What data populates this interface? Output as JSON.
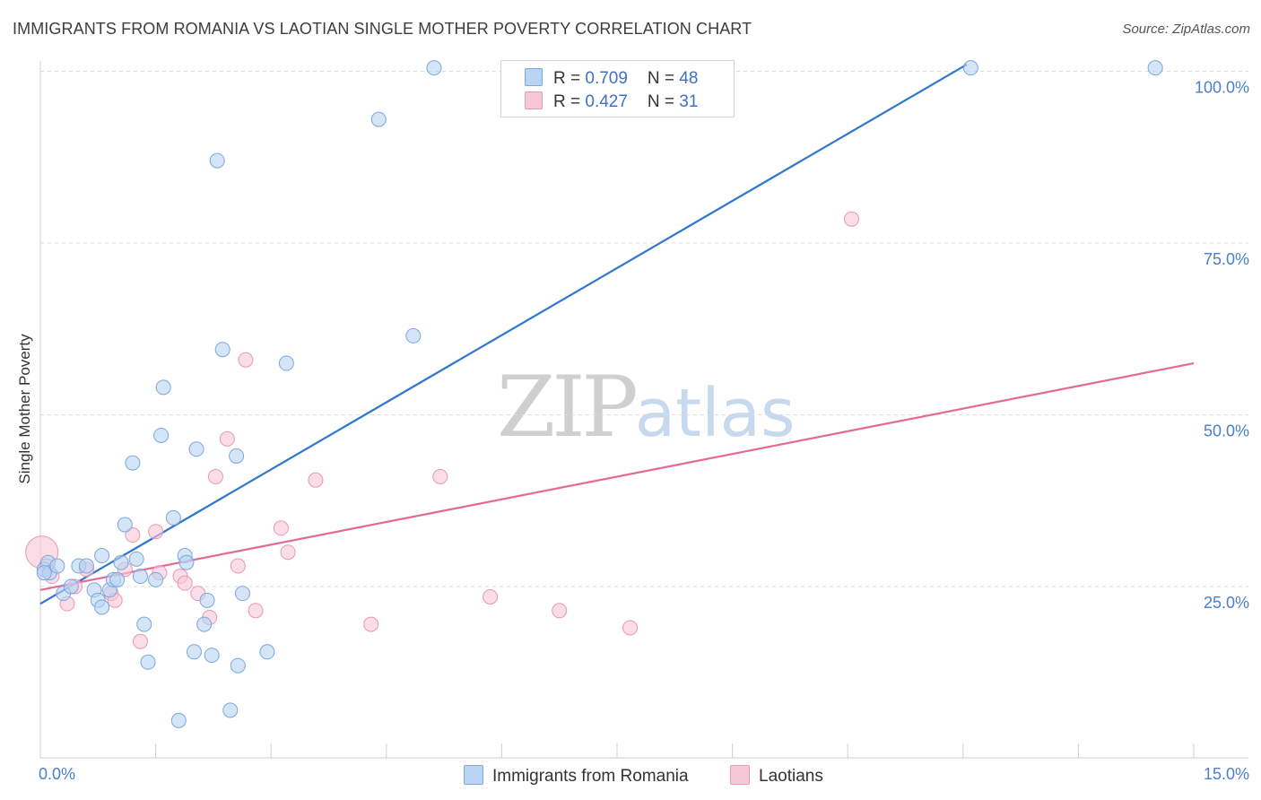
{
  "title": "IMMIGRANTS FROM ROMANIA VS LAOTIAN SINGLE MOTHER POVERTY CORRELATION CHART",
  "source": "Source: ZipAtlas.com",
  "watermark": {
    "zip": "ZIP",
    "atlas": "atlas"
  },
  "legend": {
    "rows": [
      {
        "r_label": "R = ",
        "r_value": "0.709",
        "n_label": "N = ",
        "n_value": "48"
      },
      {
        "r_label": "R = ",
        "r_value": "0.427",
        "n_label": "N = ",
        "n_value": "31"
      }
    ]
  },
  "colors": {
    "blue_fill": "#b9d4f3",
    "blue_stroke": "#7aa7dc",
    "blue_line": "#2f76cf",
    "pink_fill": "#f8c7d7",
    "pink_stroke": "#ea97b3",
    "pink_line": "#e46a96",
    "grid": "#dcdcdc",
    "tick_text": "#4a7fc9"
  },
  "chart_data": {
    "type": "scatter",
    "title": "IMMIGRANTS FROM ROMANIA VS LAOTIAN SINGLE MOTHER POVERTY CORRELATION CHART",
    "xlabel": "",
    "ylabel": "Single Mother Poverty",
    "xlim": [
      0,
      15
    ],
    "ylim": [
      0,
      105
    ],
    "x_tick_labels": [
      {
        "value": 0,
        "label": "0.0%"
      },
      {
        "value": 15,
        "label": "15.0%"
      }
    ],
    "y_tick_labels": [
      {
        "value": 25,
        "label": "25.0%"
      },
      {
        "value": 50,
        "label": "50.0%"
      },
      {
        "value": 75,
        "label": "75.0%"
      },
      {
        "value": 100,
        "label": "100.0%"
      }
    ],
    "series": [
      {
        "name": "Immigrants from Romania",
        "color": "#b9d4f3",
        "trend": {
          "x": [
            0,
            12.05
          ],
          "y": [
            22.5,
            101
          ]
        },
        "points": [
          {
            "x": 0.05,
            "y": 27.5
          },
          {
            "x": 0.1,
            "y": 28.5
          },
          {
            "x": 0.12,
            "y": 27.0
          },
          {
            "x": 0.22,
            "y": 28.0
          },
          {
            "x": 0.3,
            "y": 24.0
          },
          {
            "x": 0.4,
            "y": 25.0
          },
          {
            "x": 0.5,
            "y": 28.0
          },
          {
            "x": 0.6,
            "y": 28.0
          },
          {
            "x": 0.7,
            "y": 24.5
          },
          {
            "x": 0.75,
            "y": 23.0
          },
          {
            "x": 0.8,
            "y": 22.0
          },
          {
            "x": 0.8,
            "y": 29.5
          },
          {
            "x": 0.9,
            "y": 24.5
          },
          {
            "x": 0.95,
            "y": 26.0
          },
          {
            "x": 1.0,
            "y": 26.0
          },
          {
            "x": 1.05,
            "y": 28.5
          },
          {
            "x": 1.1,
            "y": 34.0
          },
          {
            "x": 1.2,
            "y": 43.0
          },
          {
            "x": 1.25,
            "y": 29.0
          },
          {
            "x": 1.3,
            "y": 26.5
          },
          {
            "x": 1.35,
            "y": 19.5
          },
          {
            "x": 1.4,
            "y": 14.0
          },
          {
            "x": 1.5,
            "y": 26.0
          },
          {
            "x": 1.57,
            "y": 47.0
          },
          {
            "x": 1.6,
            "y": 54.0
          },
          {
            "x": 1.73,
            "y": 35.0
          },
          {
            "x": 1.8,
            "y": 5.5
          },
          {
            "x": 1.88,
            "y": 29.5
          },
          {
            "x": 1.9,
            "y": 28.5
          },
          {
            "x": 2.0,
            "y": 15.5
          },
          {
            "x": 2.03,
            "y": 45.0
          },
          {
            "x": 2.13,
            "y": 19.5
          },
          {
            "x": 2.17,
            "y": 23.0
          },
          {
            "x": 2.23,
            "y": 15.0
          },
          {
            "x": 2.3,
            "y": 87.0
          },
          {
            "x": 2.37,
            "y": 59.5
          },
          {
            "x": 2.47,
            "y": 7.0
          },
          {
            "x": 2.55,
            "y": 44.0
          },
          {
            "x": 2.57,
            "y": 13.5
          },
          {
            "x": 2.63,
            "y": 24.0
          },
          {
            "x": 2.95,
            "y": 15.5
          },
          {
            "x": 3.2,
            "y": 57.5
          },
          {
            "x": 4.4,
            "y": 93.0
          },
          {
            "x": 4.85,
            "y": 61.5
          },
          {
            "x": 5.12,
            "y": 100.5
          },
          {
            "x": 12.1,
            "y": 100.5
          },
          {
            "x": 14.5,
            "y": 100.5
          },
          {
            "x": 0.05,
            "y": 27.0
          }
        ]
      },
      {
        "name": "Laotians",
        "color": "#f8c7d7",
        "trend": {
          "x": [
            0,
            15
          ],
          "y": [
            24.5,
            57.5
          ]
        },
        "points": [
          {
            "x": 0.02,
            "y": 30.0
          },
          {
            "x": 0.08,
            "y": 28.0
          },
          {
            "x": 0.15,
            "y": 26.5
          },
          {
            "x": 0.35,
            "y": 22.5
          },
          {
            "x": 0.45,
            "y": 25.0
          },
          {
            "x": 0.6,
            "y": 27.5
          },
          {
            "x": 0.92,
            "y": 24.0
          },
          {
            "x": 0.97,
            "y": 23.0
          },
          {
            "x": 1.1,
            "y": 27.5
          },
          {
            "x": 1.2,
            "y": 32.5
          },
          {
            "x": 1.3,
            "y": 17.0
          },
          {
            "x": 1.5,
            "y": 33.0
          },
          {
            "x": 1.55,
            "y": 27.0
          },
          {
            "x": 1.82,
            "y": 26.5
          },
          {
            "x": 1.88,
            "y": 25.5
          },
          {
            "x": 2.05,
            "y": 24.0
          },
          {
            "x": 2.2,
            "y": 20.5
          },
          {
            "x": 2.28,
            "y": 41.0
          },
          {
            "x": 2.43,
            "y": 46.5
          },
          {
            "x": 2.57,
            "y": 28.0
          },
          {
            "x": 2.67,
            "y": 58.0
          },
          {
            "x": 2.8,
            "y": 21.5
          },
          {
            "x": 3.13,
            "y": 33.5
          },
          {
            "x": 3.22,
            "y": 30.0
          },
          {
            "x": 3.58,
            "y": 40.5
          },
          {
            "x": 4.3,
            "y": 19.5
          },
          {
            "x": 5.2,
            "y": 41.0
          },
          {
            "x": 5.85,
            "y": 23.5
          },
          {
            "x": 6.75,
            "y": 21.5
          },
          {
            "x": 7.67,
            "y": 19.0
          },
          {
            "x": 10.55,
            "y": 78.5
          }
        ]
      }
    ],
    "legend": {
      "position": "top-center"
    }
  },
  "bottom_legend": {
    "items": [
      {
        "label": "Immigrants from Romania"
      },
      {
        "label": "Laotians"
      }
    ]
  }
}
